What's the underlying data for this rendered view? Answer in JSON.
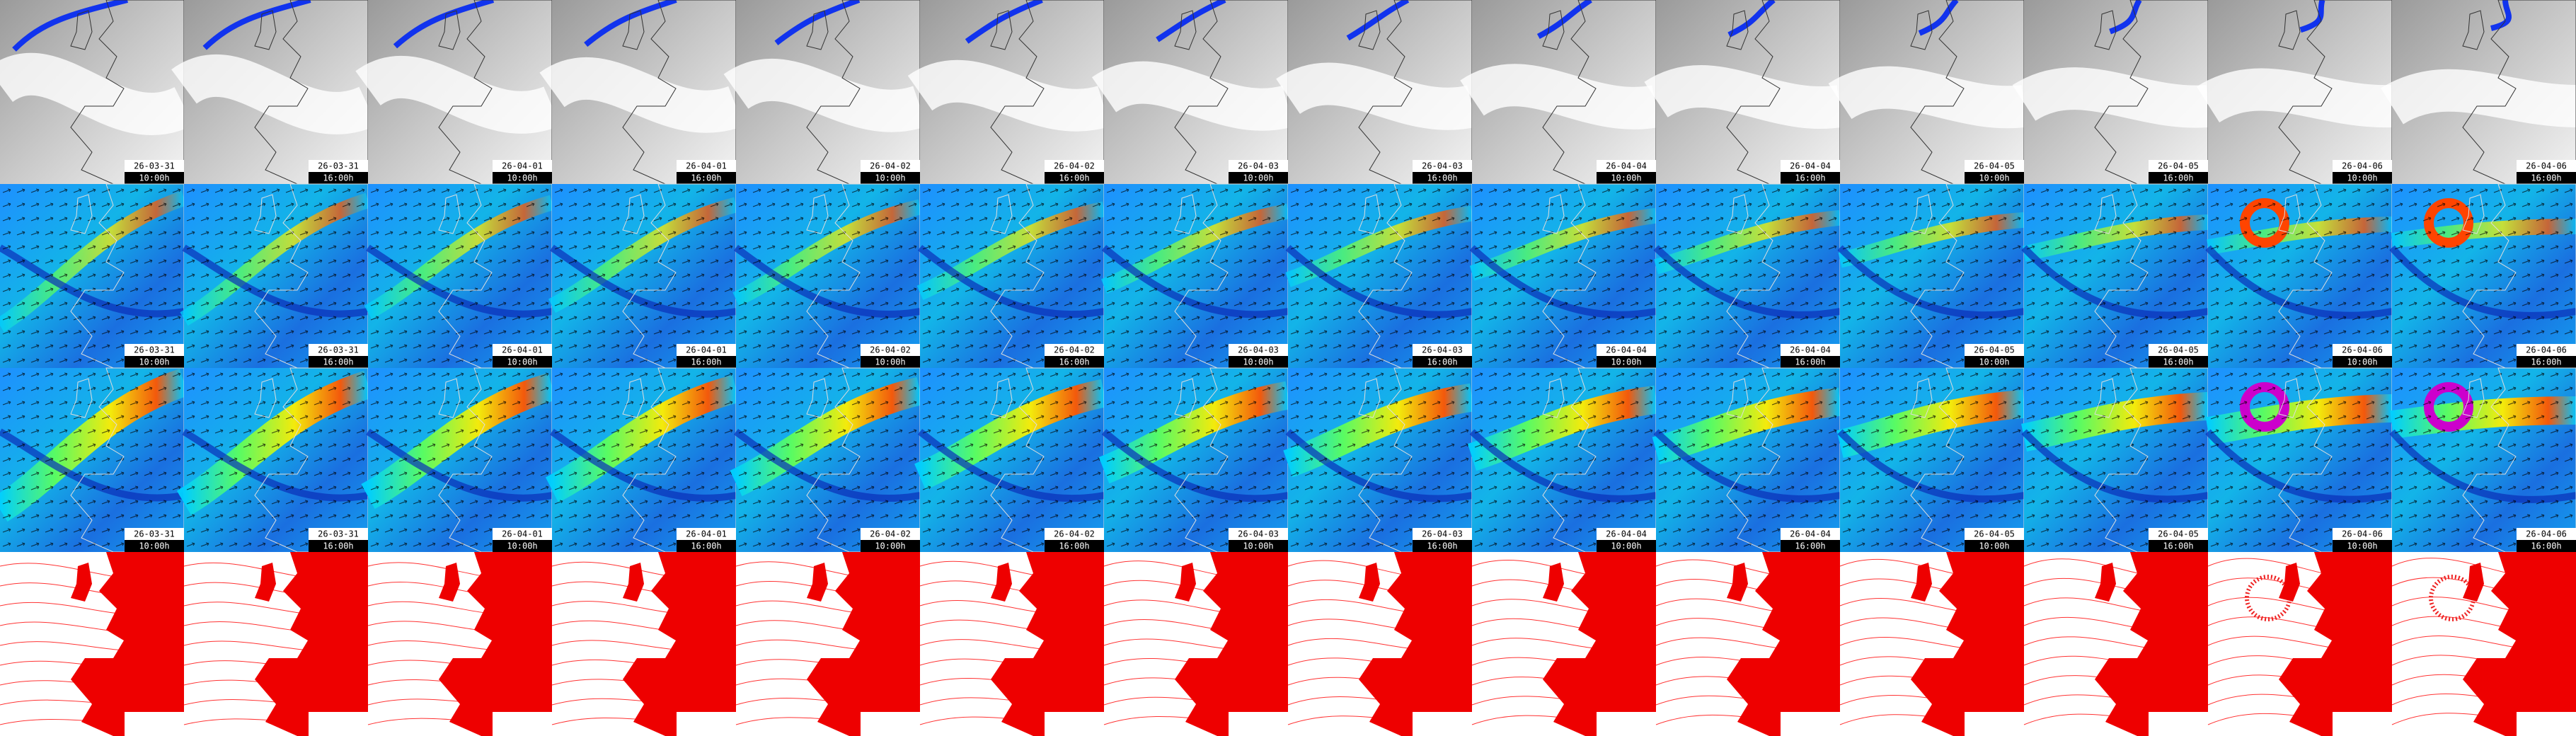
{
  "panels": [
    {
      "date": "26-03-31",
      "time": "10:00h"
    },
    {
      "date": "26-03-31",
      "time": "16:00h"
    },
    {
      "date": "26-04-01",
      "time": "10:00h"
    },
    {
      "date": "26-04-01",
      "time": "16:00h"
    },
    {
      "date": "26-04-02",
      "time": "10:00h"
    },
    {
      "date": "26-04-02",
      "time": "16:00h"
    },
    {
      "date": "26-04-03",
      "time": "10:00h"
    },
    {
      "date": "26-04-03",
      "time": "16:00h"
    },
    {
      "date": "26-04-04",
      "time": "10:00h"
    },
    {
      "date": "26-04-04",
      "time": "16:00h"
    },
    {
      "date": "26-04-05",
      "time": "10:00h"
    },
    {
      "date": "26-04-05",
      "time": "16:00h"
    },
    {
      "date": "26-04-06",
      "time": "10:00h"
    },
    {
      "date": "26-04-06",
      "time": "16:00h"
    }
  ]
}
